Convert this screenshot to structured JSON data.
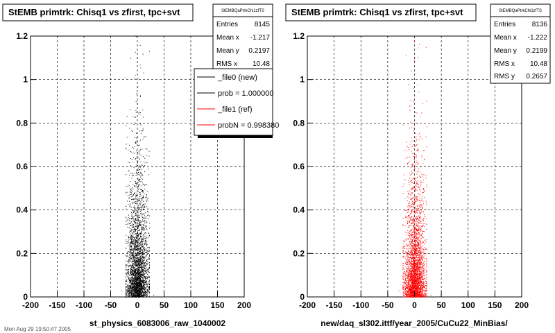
{
  "footer": "Mon Aug 29 19:50:47 2005",
  "chart_data": [
    {
      "type": "scatter",
      "title": "StEMB primtrk: Chisq1 vs zfirst, tpc+svt",
      "xlabel": "st_physics_6083006_raw_1040002",
      "ylabel": "",
      "xlim": [
        -200,
        200
      ],
      "ylim": [
        0,
        1.2
      ],
      "x_ticks": [
        "-200",
        "-150",
        "-100",
        "-50",
        "0",
        "50",
        "100",
        "150",
        "200"
      ],
      "y_ticks": [
        "0",
        "0.2",
        "0.4",
        "0.6",
        "0.8",
        "1",
        "1.2"
      ],
      "grid": true,
      "marker_color": "#000000",
      "series": [
        {
          "points": [
            [
              -15,
              0.05
            ],
            [
              -10,
              0.12
            ],
            [
              -5,
              0.2
            ],
            [
              0,
              0.3
            ],
            [
              5,
              0.15
            ],
            [
              10,
              0.08
            ],
            [
              15,
              0.25
            ],
            [
              -20,
              0.02
            ],
            [
              20,
              0.04
            ],
            [
              0,
              0.5
            ],
            [
              3,
              0.7
            ],
            [
              -3,
              0.9
            ],
            [
              0,
              1.1
            ],
            [
              30,
              0.01
            ],
            [
              -30,
              0.03
            ]
          ]
        }
      ],
      "stats": {
        "name": "StEMBQaPtrkChi1zfTS",
        "rows": [
          {
            "label": "Entries",
            "value": "8145"
          },
          {
            "label": "Mean x",
            "value": "-1.217"
          },
          {
            "label": "Mean y",
            "value": "0.2197"
          },
          {
            "label": "RMS x",
            "value": "10.48"
          }
        ]
      },
      "legend": {
        "placement": "top-right",
        "entries": [
          {
            "label": "_file0 (new)",
            "color": "#000000"
          },
          {
            "label": "prob = 1.000000",
            "color": "#000000"
          },
          {
            "label": "_file1 (ref)",
            "color": "#ff0000"
          },
          {
            "label": "probN = 0.998380",
            "color": "#ff0000"
          }
        ]
      }
    },
    {
      "type": "scatter",
      "title": "StEMB primtrk: Chisq1 vs zfirst, tpc+svt",
      "xlabel": "new/daq_sl302.ittf/year_2005/CuCu22_MinBias/",
      "ylabel": "",
      "xlim": [
        -200,
        200
      ],
      "ylim": [
        0,
        1.2
      ],
      "x_ticks": [
        "-200",
        "-150",
        "-100",
        "-50",
        "0",
        "50",
        "100",
        "150",
        "200"
      ],
      "y_ticks": [
        "0",
        "0.2",
        "0.4",
        "0.6",
        "0.8",
        "1",
        "1.2"
      ],
      "grid": true,
      "marker_color": "#ff0000",
      "series": [
        {
          "points": [
            [
              -15,
              0.05
            ],
            [
              -10,
              0.12
            ],
            [
              -5,
              0.2
            ],
            [
              0,
              0.3
            ],
            [
              5,
              0.15
            ],
            [
              10,
              0.08
            ],
            [
              15,
              0.25
            ],
            [
              -20,
              0.02
            ],
            [
              20,
              0.04
            ],
            [
              0,
              0.5
            ],
            [
              3,
              0.7
            ],
            [
              -3,
              0.9
            ],
            [
              0,
              1.1
            ],
            [
              30,
              0.01
            ],
            [
              -30,
              0.03
            ]
          ]
        }
      ],
      "stats": {
        "name": "StEMBQaPtrkChi1zfTS",
        "rows": [
          {
            "label": "Entries",
            "value": "8136"
          },
          {
            "label": "Mean x",
            "value": "-1.222"
          },
          {
            "label": "Mean y",
            "value": "0.2199"
          },
          {
            "label": "RMS x",
            "value": "10.48"
          },
          {
            "label": "RMS y",
            "value": "0.2657"
          }
        ]
      }
    }
  ]
}
